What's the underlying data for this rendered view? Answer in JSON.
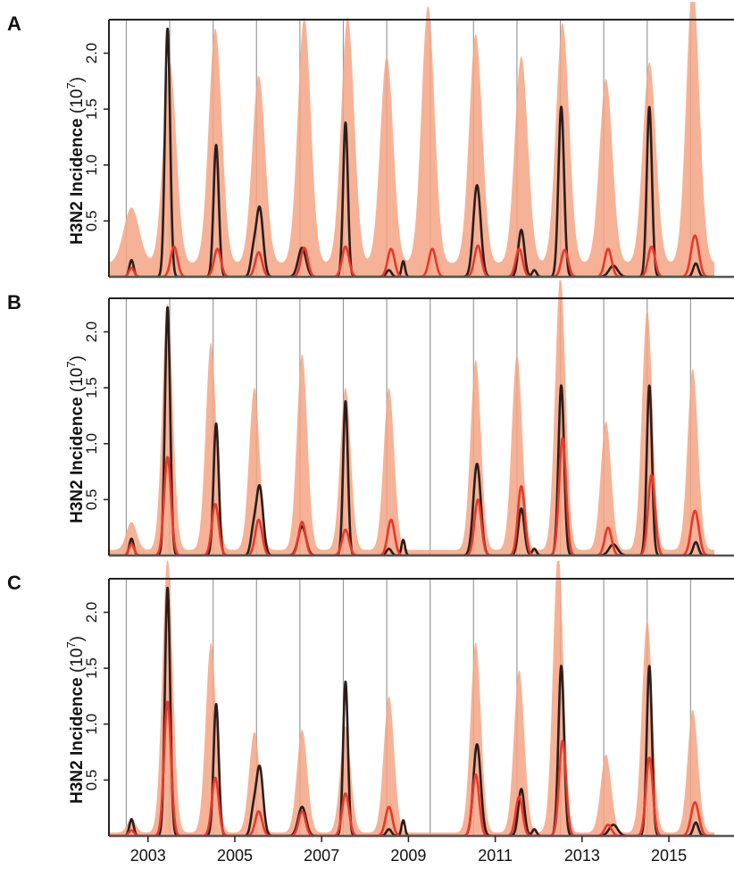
{
  "chart_data": {
    "type": "line",
    "shared": {
      "ylabel_main": "H3N2 Incidence",
      "ylabel_unit": "(10",
      "ylabel_exp": "7",
      "ylabel_close": ")",
      "ylim": [
        0,
        2.3
      ],
      "yticks": [
        0.5,
        1.0,
        1.5,
        2.0
      ],
      "ytick_labels": [
        "0.5",
        "1.0",
        "1.5",
        "2.0"
      ],
      "xlim": [
        2002.1,
        2016.5
      ],
      "xticks": [
        2003,
        2005,
        2007,
        2009,
        2011,
        2013,
        2015
      ],
      "xtick_labels": [
        "2003",
        "2005",
        "2007",
        "2009",
        "2011",
        "2013",
        "2015"
      ],
      "season_lines": [
        2002.5,
        2003.5,
        2004.5,
        2005.5,
        2006.5,
        2007.5,
        2008.5,
        2009.5,
        2010.5,
        2011.5,
        2012.5,
        2013.5,
        2014.5,
        2015.5
      ],
      "colors": {
        "observed": "#2b1d1b",
        "predicted": "#e8392a",
        "interval": "#f4a585",
        "season_line": "#9a9a9a"
      },
      "observed_peaks": [
        {
          "t": 2002.62,
          "h": 0.15,
          "w": 0.05
        },
        {
          "t": 2003.45,
          "h": 2.22,
          "w": 0.06
        },
        {
          "t": 2004.57,
          "h": 1.18,
          "w": 0.06
        },
        {
          "t": 2005.57,
          "h": 0.62,
          "w": 0.08
        },
        {
          "t": 2005.42,
          "h": 0.18,
          "w": 0.06
        },
        {
          "t": 2006.55,
          "h": 0.26,
          "w": 0.09
        },
        {
          "t": 2007.55,
          "h": 1.38,
          "w": 0.055
        },
        {
          "t": 2008.55,
          "h": 0.06,
          "w": 0.06
        },
        {
          "t": 2008.88,
          "h": 0.14,
          "w": 0.04
        },
        {
          "t": 2010.58,
          "h": 0.82,
          "w": 0.085
        },
        {
          "t": 2011.6,
          "h": 0.42,
          "w": 0.07
        },
        {
          "t": 2011.9,
          "h": 0.06,
          "w": 0.05
        },
        {
          "t": 2012.52,
          "h": 1.52,
          "w": 0.065
        },
        {
          "t": 2013.72,
          "h": 0.1,
          "w": 0.1
        },
        {
          "t": 2014.55,
          "h": 1.52,
          "w": 0.06
        },
        {
          "t": 2015.62,
          "h": 0.12,
          "w": 0.06
        }
      ]
    },
    "panels": [
      {
        "label": "A",
        "predicted_peaks": [
          {
            "t": 2002.62,
            "h": 0.08,
            "w": 0.06
          },
          {
            "t": 2003.6,
            "h": 0.27,
            "w": 0.08
          },
          {
            "t": 2004.6,
            "h": 0.25,
            "w": 0.08
          },
          {
            "t": 2005.55,
            "h": 0.22,
            "w": 0.08
          },
          {
            "t": 2006.6,
            "h": 0.26,
            "w": 0.08
          },
          {
            "t": 2007.55,
            "h": 0.27,
            "w": 0.08
          },
          {
            "t": 2008.6,
            "h": 0.25,
            "w": 0.08
          },
          {
            "t": 2009.55,
            "h": 0.25,
            "w": 0.08
          },
          {
            "t": 2010.6,
            "h": 0.28,
            "w": 0.08
          },
          {
            "t": 2011.55,
            "h": 0.25,
            "w": 0.08
          },
          {
            "t": 2012.6,
            "h": 0.24,
            "w": 0.08
          },
          {
            "t": 2013.6,
            "h": 0.25,
            "w": 0.08
          },
          {
            "t": 2014.6,
            "h": 0.27,
            "w": 0.08
          },
          {
            "t": 2015.6,
            "h": 0.37,
            "w": 0.09
          }
        ],
        "interval_peaks": [
          {
            "t": 2002.62,
            "h": 0.5,
            "w": 0.18
          },
          {
            "t": 2003.5,
            "h": 1.8,
            "w": 0.15
          },
          {
            "t": 2004.55,
            "h": 2.1,
            "w": 0.15
          },
          {
            "t": 2005.55,
            "h": 1.68,
            "w": 0.15
          },
          {
            "t": 2006.6,
            "h": 2.2,
            "w": 0.15
          },
          {
            "t": 2007.6,
            "h": 2.2,
            "w": 0.15
          },
          {
            "t": 2008.5,
            "h": 1.85,
            "w": 0.15
          },
          {
            "t": 2009.45,
            "h": 2.3,
            "w": 0.15
          },
          {
            "t": 2010.55,
            "h": 2.05,
            "w": 0.15
          },
          {
            "t": 2011.6,
            "h": 1.85,
            "w": 0.15
          },
          {
            "t": 2012.55,
            "h": 2.15,
            "w": 0.15
          },
          {
            "t": 2013.55,
            "h": 1.65,
            "w": 0.15
          },
          {
            "t": 2014.55,
            "h": 1.8,
            "w": 0.15
          },
          {
            "t": 2015.55,
            "h": 2.5,
            "w": 0.15
          }
        ],
        "interval_base": 0.12
      },
      {
        "label": "B",
        "predicted_peaks": [
          {
            "t": 2002.62,
            "h": 0.1,
            "w": 0.06
          },
          {
            "t": 2003.45,
            "h": 0.88,
            "w": 0.08
          },
          {
            "t": 2004.55,
            "h": 0.46,
            "w": 0.08
          },
          {
            "t": 2005.55,
            "h": 0.32,
            "w": 0.08
          },
          {
            "t": 2006.55,
            "h": 0.3,
            "w": 0.08
          },
          {
            "t": 2007.55,
            "h": 0.23,
            "w": 0.08
          },
          {
            "t": 2008.6,
            "h": 0.32,
            "w": 0.08
          },
          {
            "t": 2010.6,
            "h": 0.5,
            "w": 0.08
          },
          {
            "t": 2011.6,
            "h": 0.62,
            "w": 0.08
          },
          {
            "t": 2012.55,
            "h": 1.05,
            "w": 0.08
          },
          {
            "t": 2013.6,
            "h": 0.25,
            "w": 0.08
          },
          {
            "t": 2014.6,
            "h": 0.72,
            "w": 0.08
          },
          {
            "t": 2015.6,
            "h": 0.4,
            "w": 0.09
          }
        ],
        "interval_peaks": [
          {
            "t": 2002.62,
            "h": 0.25,
            "w": 0.12
          },
          {
            "t": 2003.45,
            "h": 2.2,
            "w": 0.12
          },
          {
            "t": 2004.45,
            "h": 1.85,
            "w": 0.12
          },
          {
            "t": 2005.45,
            "h": 1.45,
            "w": 0.12
          },
          {
            "t": 2006.55,
            "h": 1.75,
            "w": 0.12
          },
          {
            "t": 2007.55,
            "h": 1.45,
            "w": 0.12
          },
          {
            "t": 2008.55,
            "h": 1.45,
            "w": 0.12
          },
          {
            "t": 2010.55,
            "h": 1.7,
            "w": 0.12
          },
          {
            "t": 2011.5,
            "h": 1.75,
            "w": 0.12
          },
          {
            "t": 2012.5,
            "h": 2.45,
            "w": 0.12
          },
          {
            "t": 2013.55,
            "h": 1.15,
            "w": 0.12
          },
          {
            "t": 2014.5,
            "h": 2.15,
            "w": 0.12
          },
          {
            "t": 2015.55,
            "h": 1.62,
            "w": 0.12
          }
        ],
        "interval_base": 0.05
      },
      {
        "label": "C",
        "predicted_peaks": [
          {
            "t": 2002.62,
            "h": 0.05,
            "w": 0.06
          },
          {
            "t": 2003.45,
            "h": 1.2,
            "w": 0.08
          },
          {
            "t": 2004.55,
            "h": 0.52,
            "w": 0.08
          },
          {
            "t": 2005.55,
            "h": 0.22,
            "w": 0.08
          },
          {
            "t": 2006.55,
            "h": 0.22,
            "w": 0.08
          },
          {
            "t": 2007.55,
            "h": 0.38,
            "w": 0.08
          },
          {
            "t": 2008.55,
            "h": 0.26,
            "w": 0.08
          },
          {
            "t": 2010.55,
            "h": 0.55,
            "w": 0.08
          },
          {
            "t": 2011.55,
            "h": 0.35,
            "w": 0.08
          },
          {
            "t": 2012.55,
            "h": 0.85,
            "w": 0.08
          },
          {
            "t": 2013.6,
            "h": 0.1,
            "w": 0.08
          },
          {
            "t": 2014.55,
            "h": 0.7,
            "w": 0.08
          },
          {
            "t": 2015.6,
            "h": 0.3,
            "w": 0.09
          }
        ],
        "interval_peaks": [
          {
            "t": 2002.62,
            "h": 0.12,
            "w": 0.1
          },
          {
            "t": 2003.45,
            "h": 2.45,
            "w": 0.12
          },
          {
            "t": 2004.45,
            "h": 1.7,
            "w": 0.12
          },
          {
            "t": 2005.45,
            "h": 0.9,
            "w": 0.12
          },
          {
            "t": 2006.55,
            "h": 0.92,
            "w": 0.12
          },
          {
            "t": 2007.55,
            "h": 0.95,
            "w": 0.12
          },
          {
            "t": 2008.55,
            "h": 1.22,
            "w": 0.12
          },
          {
            "t": 2010.55,
            "h": 1.7,
            "w": 0.12
          },
          {
            "t": 2011.55,
            "h": 1.45,
            "w": 0.12
          },
          {
            "t": 2012.45,
            "h": 2.5,
            "w": 0.12
          },
          {
            "t": 2013.55,
            "h": 0.7,
            "w": 0.12
          },
          {
            "t": 2014.5,
            "h": 1.9,
            "w": 0.12
          },
          {
            "t": 2015.55,
            "h": 1.1,
            "w": 0.12
          }
        ],
        "interval_base": 0.03
      }
    ]
  }
}
